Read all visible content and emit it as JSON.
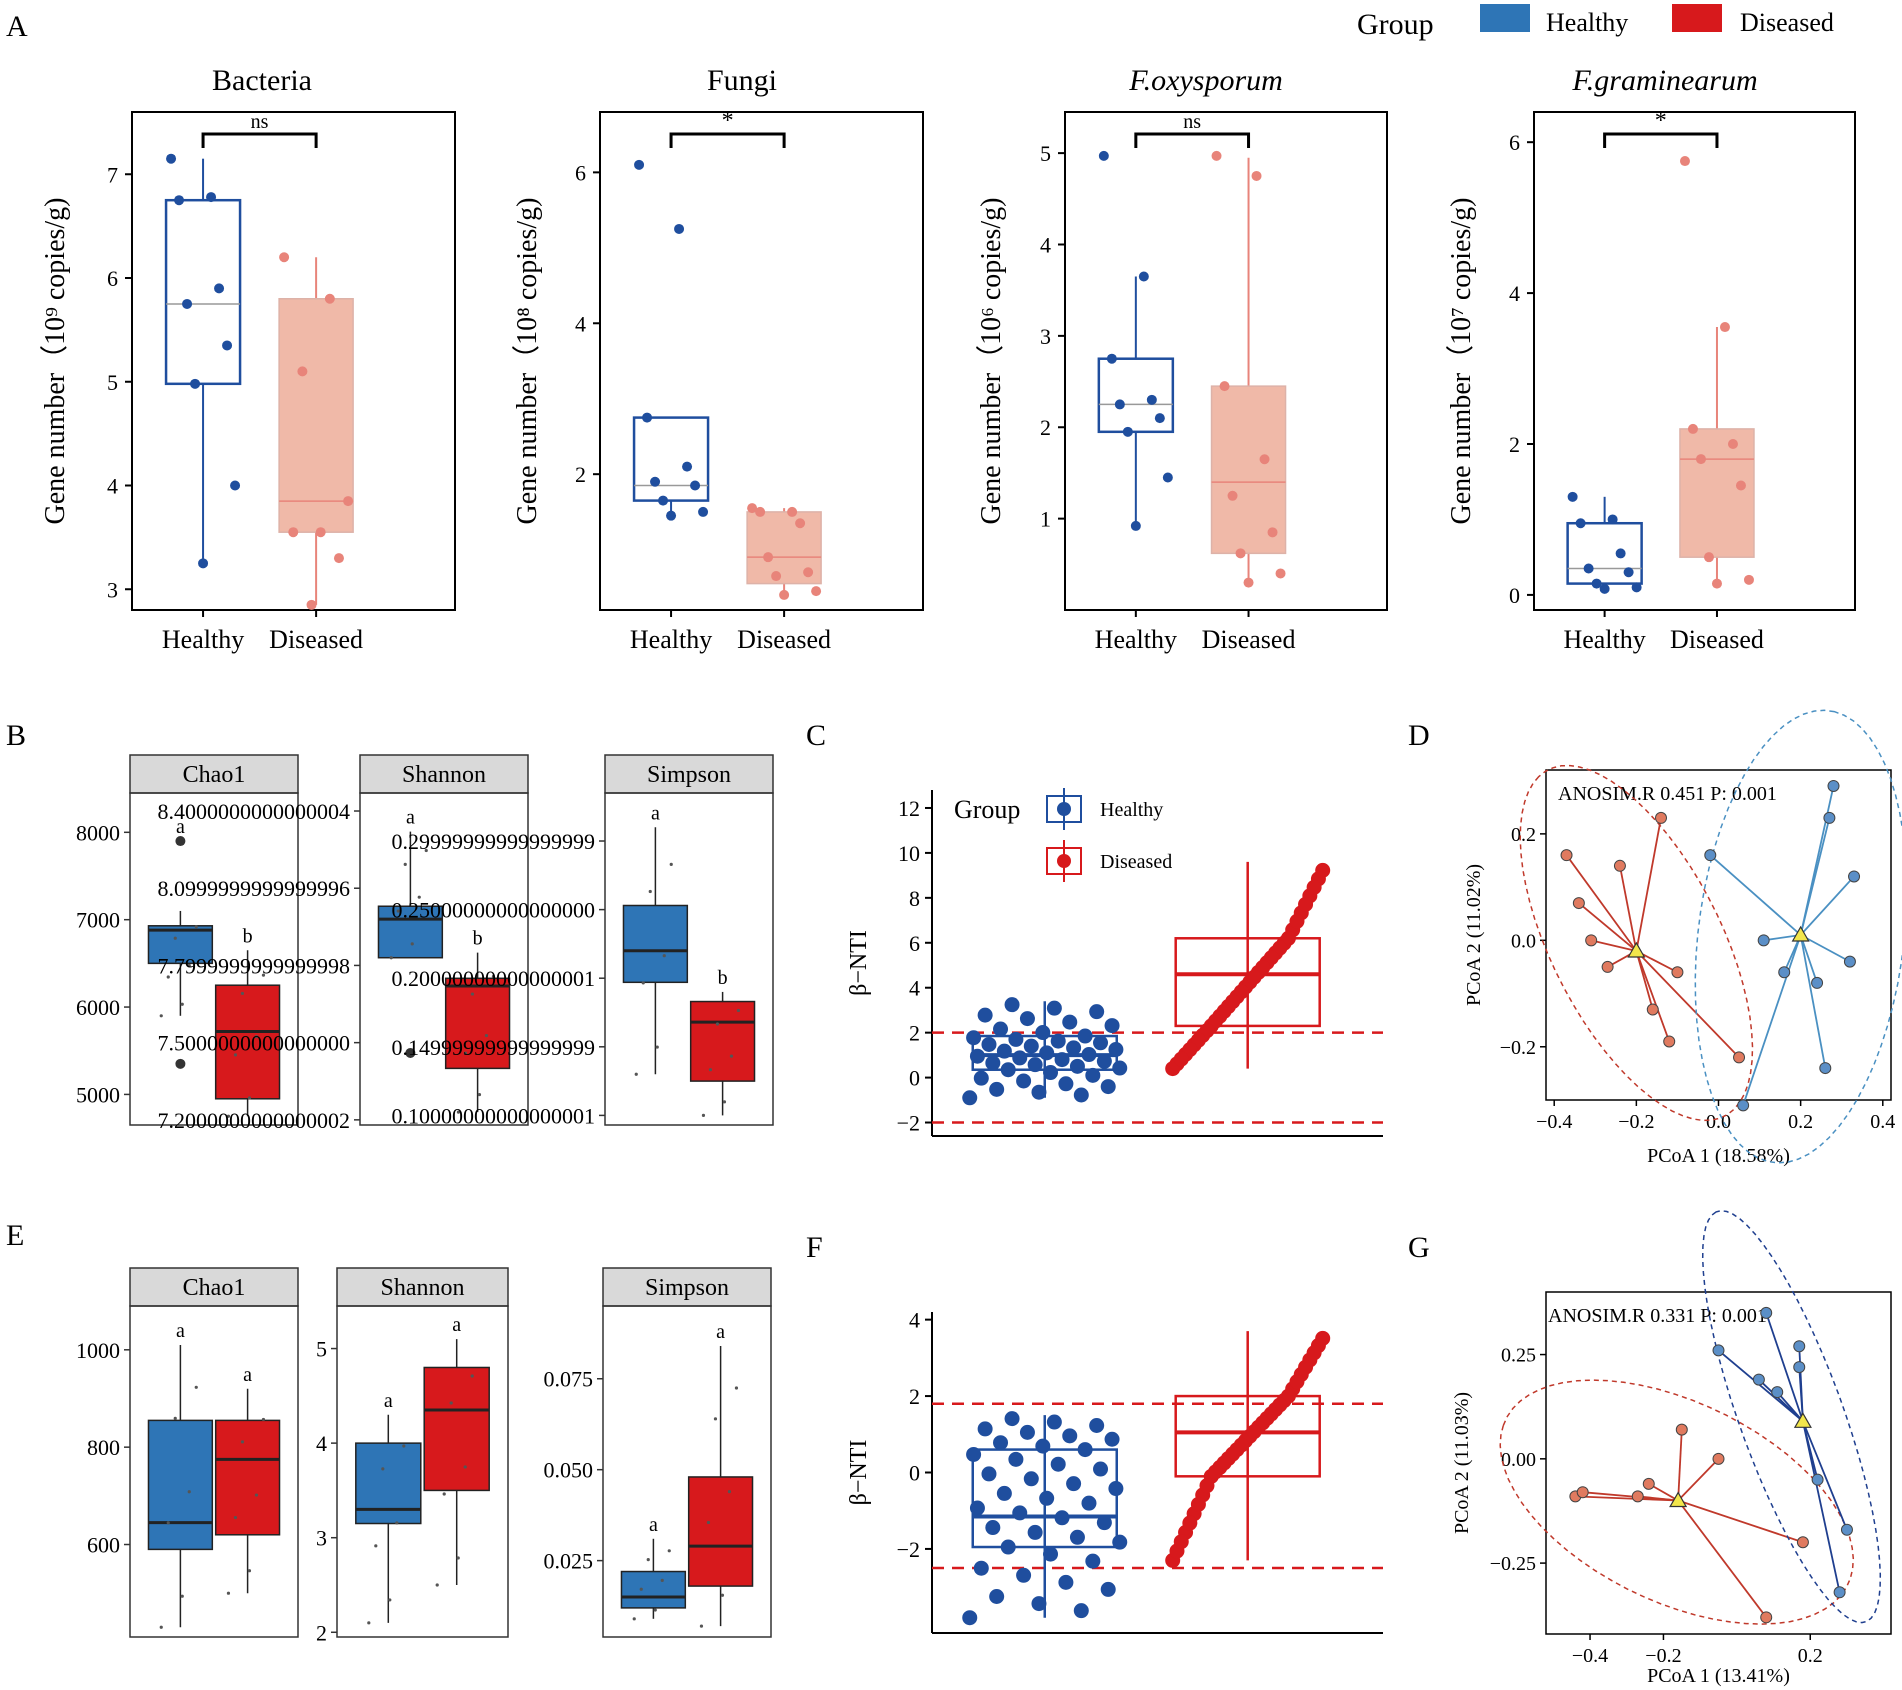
{
  "legend": {
    "title": "Group",
    "items": [
      {
        "name": "Healthy",
        "color": "#2E75B6"
      },
      {
        "name": "Diseased",
        "color": "#D7191C"
      }
    ]
  },
  "colors": {
    "healthy_dark": "#1F4E9E",
    "diseased_light": "#E8847A",
    "diseased_fill": "#F0B9A8",
    "healthy_box": "#2E75B6",
    "diseased_box": "#D7191C",
    "hline": "#D7191C"
  },
  "panels": {
    "A": "A",
    "B": "B",
    "C": "C",
    "D": "D",
    "E": "E",
    "F": "F",
    "G": "G"
  },
  "chart_data": [
    {
      "id": "A1",
      "type": "box",
      "title": "Bacteria",
      "ylabel": "Gene number（10⁹ copies/g)",
      "categories": [
        "Healthy",
        "Diseased"
      ],
      "ylim": [
        2.8,
        7.6
      ],
      "yticks": [
        3,
        4,
        5,
        6,
        7
      ],
      "series": [
        {
          "name": "Healthy",
          "box": {
            "q1": 4.98,
            "median": 5.75,
            "q3": 6.75,
            "low": 3.25,
            "high": 7.15
          },
          "points": [
            7.15,
            6.78,
            6.75,
            5.9,
            5.75,
            5.35,
            4.98,
            4.0,
            3.25
          ]
        },
        {
          "name": "Diseased",
          "box": {
            "q1": 3.55,
            "median": 3.85,
            "q3": 5.8,
            "low": 2.85,
            "high": 6.2
          },
          "points": [
            6.2,
            5.8,
            5.1,
            3.85,
            3.55,
            3.55,
            3.3,
            2.85
          ]
        }
      ],
      "significance": "ns"
    },
    {
      "id": "A2",
      "type": "box",
      "title": "Fungi",
      "ylabel": "Gene number（10⁸ copies/g)",
      "categories": [
        "Healthy",
        "Diseased"
      ],
      "ylim": [
        0.2,
        6.8
      ],
      "yticks": [
        2,
        4,
        6
      ],
      "series": [
        {
          "name": "Healthy",
          "box": {
            "q1": 1.65,
            "median": 1.85,
            "q3": 2.75,
            "low": 1.45,
            "high": 2.75
          },
          "points": [
            6.1,
            5.25,
            2.75,
            2.1,
            1.9,
            1.85,
            1.65,
            1.5,
            1.45
          ]
        },
        {
          "name": "Diseased",
          "box": {
            "q1": 0.55,
            "median": 0.9,
            "q3": 1.5,
            "low": 0.4,
            "high": 1.55
          },
          "points": [
            1.55,
            1.5,
            1.5,
            1.35,
            0.9,
            0.7,
            0.65,
            0.45,
            0.4
          ]
        }
      ],
      "significance": "*"
    },
    {
      "id": "A3",
      "type": "box",
      "title": "F.oxysporum",
      "ylabel": "Gene number（10⁶ copies/g)",
      "categories": [
        "Healthy",
        "Diseased"
      ],
      "ylim": [
        0.0,
        5.45
      ],
      "yticks": [
        1,
        2,
        3,
        4,
        5
      ],
      "series": [
        {
          "name": "Healthy",
          "box": {
            "q1": 1.95,
            "median": 2.25,
            "q3": 2.75,
            "low": 0.95,
            "high": 3.65
          },
          "points": [
            4.97,
            3.65,
            2.75,
            2.3,
            2.25,
            2.1,
            1.95,
            1.45,
            0.92
          ]
        },
        {
          "name": "Diseased",
          "box": {
            "q1": 0.62,
            "median": 1.4,
            "q3": 2.45,
            "low": 0.3,
            "high": 4.95
          },
          "points": [
            4.97,
            4.75,
            2.45,
            1.65,
            1.25,
            0.85,
            0.62,
            0.4,
            0.3
          ]
        }
      ],
      "significance": "ns"
    },
    {
      "id": "A4",
      "type": "box",
      "title": "F.graminearum",
      "ylabel": "Gene number（10⁷ copies/g)",
      "categories": [
        "Healthy",
        "Diseased"
      ],
      "ylim": [
        -0.2,
        6.4
      ],
      "yticks": [
        0,
        2,
        4,
        6
      ],
      "series": [
        {
          "name": "Healthy",
          "box": {
            "q1": 0.15,
            "median": 0.35,
            "q3": 0.95,
            "low": 0.08,
            "high": 1.3
          },
          "points": [
            1.3,
            1.0,
            0.95,
            0.55,
            0.35,
            0.3,
            0.15,
            0.1,
            0.08
          ]
        },
        {
          "name": "Diseased",
          "box": {
            "q1": 0.5,
            "median": 1.8,
            "q3": 2.2,
            "low": 0.15,
            "high": 3.55
          },
          "points": [
            5.75,
            3.55,
            2.2,
            2.0,
            1.8,
            1.45,
            0.5,
            0.2,
            0.15
          ]
        }
      ],
      "significance": "*"
    },
    {
      "id": "B1",
      "type": "box",
      "strip": "Chao1",
      "ylim": [
        4650,
        8450
      ],
      "yticks": [
        5000,
        6000,
        7000,
        8000
      ],
      "series": [
        {
          "name": "Healthy",
          "box": {
            "q1": 6500,
            "median": 6880,
            "q3": 6930,
            "low": 5900,
            "high": 7100
          },
          "outliers": [
            7900,
            5350
          ],
          "letter": "a"
        },
        {
          "name": "Diseased",
          "box": {
            "q1": 4950,
            "median": 5720,
            "q3": 6250,
            "low": 4750,
            "high": 6650
          },
          "outliers": [],
          "letter": "b"
        }
      ]
    },
    {
      "id": "B2",
      "type": "box",
      "strip": "Shannon",
      "ylim": [
        7.18,
        8.47
      ],
      "yticks": [
        7.2,
        7.5,
        7.8,
        8.1,
        8.4
      ],
      "series": [
        {
          "name": "Healthy",
          "box": {
            "q1": 7.83,
            "median": 7.98,
            "q3": 8.03,
            "low": 7.83,
            "high": 8.32
          },
          "outliers": [
            7.46
          ],
          "letter": "a"
        },
        {
          "name": "Diseased",
          "box": {
            "q1": 7.4,
            "median": 7.72,
            "q3": 7.75,
            "low": 7.23,
            "high": 7.85
          },
          "outliers": [],
          "letter": "b"
        }
      ]
    },
    {
      "id": "B3",
      "type": "box",
      "strip": "Simpson",
      "ylim": [
        0.093,
        0.335
      ],
      "yticks": [
        0.1,
        0.15,
        0.2,
        0.25,
        0.3
      ],
      "series": [
        {
          "name": "Healthy",
          "box": {
            "q1": 0.197,
            "median": 0.22,
            "q3": 0.253,
            "low": 0.13,
            "high": 0.31
          },
          "outliers": [],
          "letter": "a"
        },
        {
          "name": "Diseased",
          "box": {
            "q1": 0.125,
            "median": 0.168,
            "q3": 0.183,
            "low": 0.1,
            "high": 0.19
          },
          "outliers": [],
          "letter": "b"
        }
      ]
    },
    {
      "id": "C",
      "type": "box",
      "ylabel": "β−NTI",
      "ylim": [
        -2.6,
        12.8
      ],
      "yticks": [
        -2,
        0,
        2,
        4,
        6,
        8,
        10,
        12
      ],
      "hlines": [
        2,
        -2
      ],
      "series": [
        {
          "name": "Healthy",
          "box": {
            "q1": 0.35,
            "median": 1.0,
            "q3": 1.85,
            "low": -0.9,
            "high": 3.4
          }
        },
        {
          "name": "Diseased",
          "box": {
            "q1": 2.3,
            "median": 4.6,
            "q3": 6.2,
            "low": 0.4,
            "high": 9.6
          }
        }
      ]
    },
    {
      "id": "D",
      "type": "scatter",
      "annotation": "ANOSIM.R 0.451 P: 0.001",
      "xlabel": "PCoA 1 (18.58%)",
      "ylabel": "PCoA 2 (11.02%)",
      "xlim": [
        -0.42,
        0.42
      ],
      "ylim": [
        -0.3,
        0.32
      ],
      "xticks": [
        -0.4,
        -0.2,
        0.0,
        0.2,
        0.4
      ],
      "yticks": [
        -0.2,
        0.0,
        0.2
      ],
      "series": [
        {
          "name": "Diseased",
          "centroid": [
            -0.2,
            -0.02
          ],
          "points": [
            [
              -0.37,
              0.16
            ],
            [
              -0.34,
              0.07
            ],
            [
              -0.31,
              0.0
            ],
            [
              -0.27,
              -0.05
            ],
            [
              -0.24,
              0.14
            ],
            [
              -0.16,
              -0.13
            ],
            [
              -0.12,
              -0.19
            ],
            [
              -0.1,
              -0.06
            ],
            [
              -0.14,
              0.23
            ],
            [
              0.05,
              -0.22
            ]
          ]
        },
        {
          "name": "Healthy",
          "centroid": [
            0.2,
            0.01
          ],
          "points": [
            [
              0.28,
              0.29
            ],
            [
              0.27,
              0.23
            ],
            [
              0.33,
              0.12
            ],
            [
              0.32,
              -0.04
            ],
            [
              0.24,
              -0.08
            ],
            [
              0.26,
              -0.24
            ],
            [
              0.16,
              -0.06
            ],
            [
              0.11,
              0.0
            ],
            [
              0.06,
              -0.31
            ],
            [
              -0.02,
              0.16
            ]
          ]
        }
      ]
    },
    {
      "id": "E1",
      "type": "box",
      "strip": "Chao1",
      "ylim": [
        410,
        1090
      ],
      "yticks": [
        600,
        800,
        1000
      ],
      "series": [
        {
          "name": "Healthy",
          "box": {
            "q1": 590,
            "median": 645,
            "q3": 855,
            "low": 430,
            "high": 1010
          },
          "outliers": [],
          "letter": "a"
        },
        {
          "name": "Diseased",
          "box": {
            "q1": 620,
            "median": 775,
            "q3": 855,
            "low": 500,
            "high": 920
          },
          "outliers": [],
          "letter": "a"
        }
      ]
    },
    {
      "id": "E2",
      "type": "box",
      "strip": "Shannon",
      "ylim": [
        1.95,
        5.45
      ],
      "yticks": [
        2,
        3,
        4,
        5
      ],
      "series": [
        {
          "name": "Healthy",
          "box": {
            "q1": 3.15,
            "median": 3.3,
            "q3": 4.0,
            "low": 2.1,
            "high": 4.3
          },
          "outliers": [],
          "letter": "a"
        },
        {
          "name": "Diseased",
          "box": {
            "q1": 3.5,
            "median": 4.35,
            "q3": 4.8,
            "low": 2.5,
            "high": 5.1
          },
          "outliers": [],
          "letter": "a"
        }
      ]
    },
    {
      "id": "E3",
      "type": "box",
      "strip": "Simpson",
      "ylim": [
        0.004,
        0.095
      ],
      "yticks": [
        0.025,
        0.05,
        0.075
      ],
      "series": [
        {
          "name": "Healthy",
          "box": {
            "q1": 0.012,
            "median": 0.015,
            "q3": 0.022,
            "low": 0.009,
            "high": 0.031
          },
          "outliers": [],
          "letter": "a"
        },
        {
          "name": "Diseased",
          "box": {
            "q1": 0.018,
            "median": 0.029,
            "q3": 0.048,
            "low": 0.007,
            "high": 0.084
          },
          "outliers": [],
          "letter": "a"
        }
      ]
    },
    {
      "id": "F",
      "type": "box",
      "ylabel": "β−NTI",
      "ylim": [
        -4.2,
        4.2
      ],
      "yticks": [
        -2,
        0,
        2,
        4
      ],
      "hlines": [
        1.8,
        -2.5
      ],
      "series": [
        {
          "name": "Healthy",
          "box": {
            "q1": -1.95,
            "median": -1.15,
            "q3": 0.6,
            "low": -3.8,
            "high": 1.5
          }
        },
        {
          "name": "Diseased",
          "box": {
            "q1": -0.1,
            "median": 1.05,
            "q3": 2.0,
            "low": -2.3,
            "high": 3.7
          }
        }
      ]
    },
    {
      "id": "G",
      "type": "scatter",
      "annotation": "ANOSIM.R 0.331 P: 0.001",
      "xlabel": "PCoA 1 (13.41%)",
      "ylabel": "PCoA 2 (11.03%)",
      "xlim": [
        -0.52,
        0.42
      ],
      "ylim": [
        -0.42,
        0.4
      ],
      "xticks": [
        -0.4,
        -0.2,
        0.2
      ],
      "yticks": [
        -0.25,
        0.0,
        0.25
      ],
      "series": [
        {
          "name": "Diseased",
          "centroid": [
            -0.16,
            -0.1
          ],
          "points": [
            [
              -0.44,
              -0.09
            ],
            [
              -0.42,
              -0.08
            ],
            [
              -0.27,
              -0.09
            ],
            [
              -0.24,
              -0.06
            ],
            [
              -0.15,
              0.07
            ],
            [
              -0.05,
              0.0
            ],
            [
              0.18,
              -0.2
            ],
            [
              0.08,
              -0.38
            ]
          ]
        },
        {
          "name": "Healthy",
          "centroid": [
            0.18,
            0.09
          ],
          "points": [
            [
              0.08,
              0.35
            ],
            [
              -0.05,
              0.26
            ],
            [
              0.06,
              0.19
            ],
            [
              0.17,
              0.27
            ],
            [
              0.17,
              0.22
            ],
            [
              0.11,
              0.16
            ],
            [
              0.22,
              -0.05
            ],
            [
              0.3,
              -0.17
            ],
            [
              0.28,
              -0.32
            ]
          ]
        }
      ]
    }
  ]
}
